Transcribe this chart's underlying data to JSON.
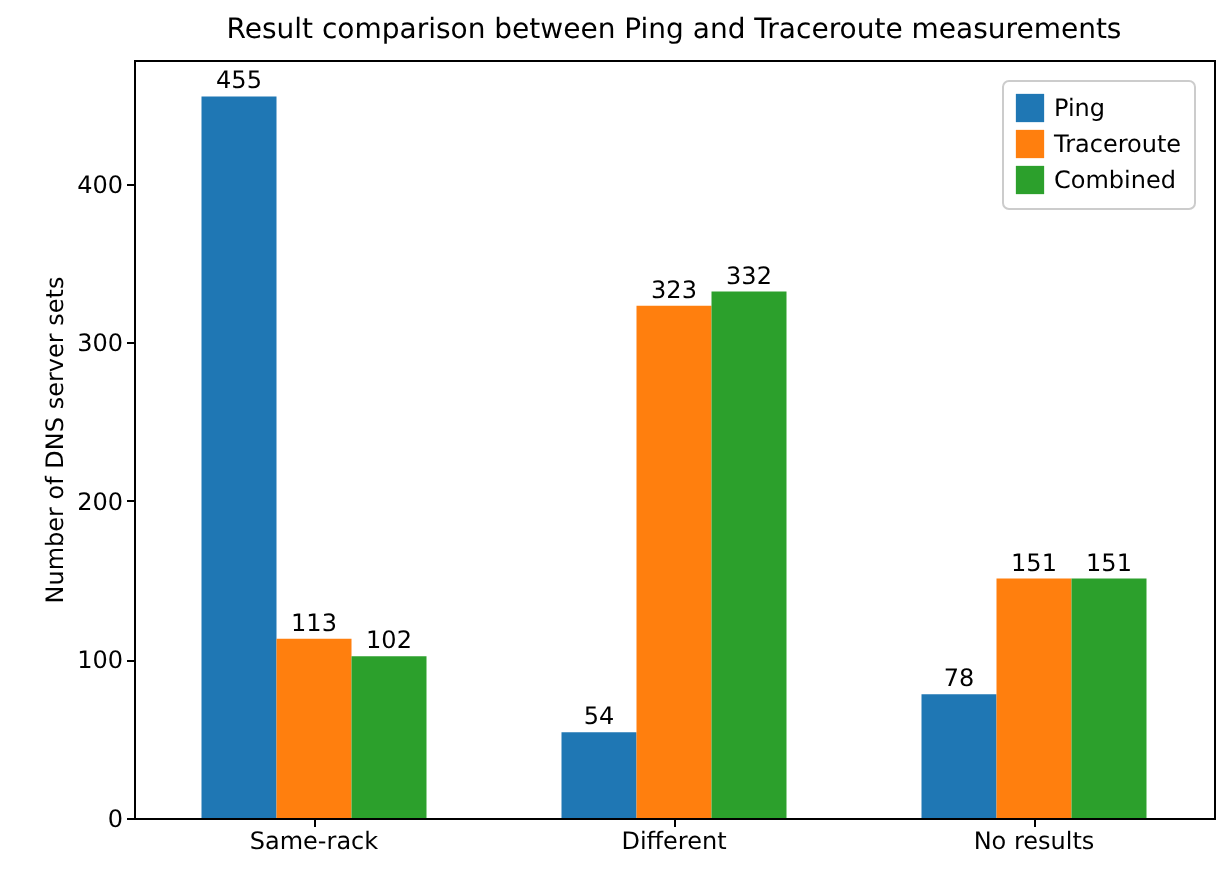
{
  "chart_data": {
    "type": "bar",
    "title": "Result comparison between Ping and Traceroute measurements",
    "ylabel": "Number of DNS server sets",
    "categories": [
      "Same-rack",
      "Different",
      "No results"
    ],
    "series": [
      {
        "name": "Ping",
        "color": "#1f77b4",
        "values": [
          455,
          54,
          78
        ]
      },
      {
        "name": "Traceroute",
        "color": "#ff7f0e",
        "values": [
          113,
          323,
          151
        ]
      },
      {
        "name": "Combined",
        "color": "#2ca02c",
        "values": [
          102,
          332,
          151
        ]
      }
    ],
    "ylim": [
      0,
      478
    ],
    "yticks": [
      0,
      100,
      200,
      300,
      400
    ],
    "data_labels": true,
    "legend": "top right"
  }
}
